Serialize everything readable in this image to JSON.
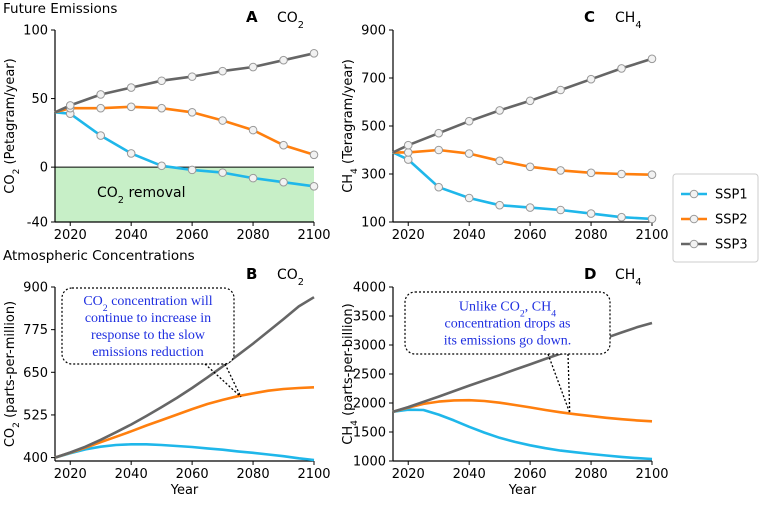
{
  "sections": {
    "top": "Future Emissions",
    "bottom": "Atmospheric Concentrations"
  },
  "colors": {
    "SSP1": "#1fb7ea",
    "SSP2": "#ff7f0e",
    "SSP3": "#666666",
    "removal": "#c7efc7"
  },
  "legend": [
    "SSP1",
    "SSP2",
    "SSP3"
  ],
  "chart_data": [
    {
      "id": "A",
      "type": "line",
      "panel_letter": "A",
      "gas": "CO",
      "gas_sub": "2",
      "title": "CO₂",
      "ylabel": "CO₂ (Petagram/year)",
      "ylabel_main": "CO",
      "ylabel_sub": "2",
      "ylabel_rest": " (Petagram/year)",
      "xlabel": "",
      "xlim": [
        2015,
        2100
      ],
      "ylim": [
        -40,
        100
      ],
      "xticks": [
        2020,
        2040,
        2060,
        2080,
        2100
      ],
      "yticks": [
        -40,
        0,
        50,
        100
      ],
      "zero_line": true,
      "removal_region": {
        "label": "CO₂ removal",
        "label_main": "CO",
        "label_sub": "2",
        "label_rest": " removal",
        "y_range": [
          -40,
          0
        ]
      },
      "markers": true,
      "series": [
        {
          "name": "SSP1",
          "x": [
            2015,
            2020,
            2030,
            2040,
            2050,
            2060,
            2070,
            2080,
            2090,
            2100
          ],
          "values": [
            40,
            39,
            23,
            10,
            1,
            -2,
            -4,
            -8,
            -11,
            -14
          ]
        },
        {
          "name": "SSP2",
          "x": [
            2015,
            2020,
            2030,
            2040,
            2050,
            2060,
            2070,
            2080,
            2090,
            2100
          ],
          "values": [
            40,
            43,
            43,
            44,
            43,
            40,
            34,
            27,
            16,
            9
          ]
        },
        {
          "name": "SSP3",
          "x": [
            2015,
            2020,
            2030,
            2040,
            2050,
            2060,
            2070,
            2080,
            2090,
            2100
          ],
          "values": [
            40,
            45,
            53,
            58,
            63,
            66,
            70,
            73,
            78,
            83
          ]
        }
      ]
    },
    {
      "id": "C",
      "type": "line",
      "panel_letter": "C",
      "gas": "CH",
      "gas_sub": "4",
      "title": "CH₄",
      "ylabel": "CH₄ (Teragram/year)",
      "ylabel_main": "CH",
      "ylabel_sub": "4",
      "ylabel_rest": " (Teragram/year)",
      "xlabel": "",
      "xlim": [
        2015,
        2100
      ],
      "ylim": [
        100,
        900
      ],
      "xticks": [
        2020,
        2040,
        2060,
        2080,
        2100
      ],
      "yticks": [
        100,
        300,
        500,
        700,
        900
      ],
      "markers": true,
      "series": [
        {
          "name": "SSP1",
          "x": [
            2015,
            2020,
            2030,
            2040,
            2050,
            2060,
            2070,
            2080,
            2090,
            2100
          ],
          "values": [
            390,
            360,
            245,
            200,
            170,
            160,
            150,
            135,
            120,
            113
          ]
        },
        {
          "name": "SSP2",
          "x": [
            2015,
            2020,
            2030,
            2040,
            2050,
            2060,
            2070,
            2080,
            2090,
            2100
          ],
          "values": [
            390,
            390,
            400,
            385,
            355,
            330,
            315,
            305,
            300,
            297
          ]
        },
        {
          "name": "SSP3",
          "x": [
            2015,
            2020,
            2030,
            2040,
            2050,
            2060,
            2070,
            2080,
            2090,
            2100
          ],
          "values": [
            390,
            420,
            470,
            520,
            565,
            605,
            650,
            695,
            740,
            780
          ]
        }
      ]
    },
    {
      "id": "B",
      "type": "line",
      "panel_letter": "B",
      "gas": "CO",
      "gas_sub": "2",
      "title": "CO₂",
      "ylabel": "CO₂ (parts-per-million)",
      "ylabel_main": "CO",
      "ylabel_sub": "2",
      "ylabel_rest": " (parts-per-million)",
      "xlabel": "Year",
      "xlim": [
        2015,
        2100
      ],
      "ylim": [
        390,
        900
      ],
      "xticks": [
        2020,
        2040,
        2060,
        2080,
        2100
      ],
      "yticks": [
        400,
        525,
        650,
        775,
        900
      ],
      "markers": false,
      "annotation": {
        "lines": [
          [
            {
              "t": "CO"
            },
            {
              "t": "2",
              "sub": true
            },
            {
              "t": " concentration will"
            }
          ],
          [
            {
              "t": "continue to increase in"
            }
          ],
          [
            {
              "t": "response to the  slow"
            }
          ],
          [
            {
              "t": "emissions reduction"
            }
          ]
        ],
        "target": [
          2076,
          578
        ]
      },
      "series": [
        {
          "name": "SSP1",
          "x": [
            2015,
            2020,
            2025,
            2030,
            2035,
            2040,
            2045,
            2050,
            2055,
            2060,
            2065,
            2070,
            2075,
            2080,
            2085,
            2090,
            2095,
            2100
          ],
          "values": [
            400,
            413,
            424,
            432,
            437,
            439,
            439,
            437,
            434,
            431,
            427,
            423,
            418,
            414,
            409,
            404,
            398,
            393
          ]
        },
        {
          "name": "SSP2",
          "x": [
            2015,
            2020,
            2025,
            2030,
            2035,
            2040,
            2045,
            2050,
            2055,
            2060,
            2065,
            2070,
            2075,
            2080,
            2085,
            2090,
            2095,
            2100
          ],
          "values": [
            400,
            414,
            429,
            445,
            461,
            477,
            494,
            510,
            526,
            542,
            557,
            569,
            580,
            588,
            596,
            601,
            604,
            606
          ]
        },
        {
          "name": "SSP3",
          "x": [
            2015,
            2020,
            2025,
            2030,
            2035,
            2040,
            2045,
            2050,
            2055,
            2060,
            2065,
            2070,
            2075,
            2080,
            2085,
            2090,
            2095,
            2100
          ],
          "values": [
            400,
            415,
            432,
            452,
            474,
            497,
            522,
            548,
            575,
            604,
            635,
            667,
            700,
            734,
            770,
            806,
            843,
            870
          ]
        }
      ]
    },
    {
      "id": "D",
      "type": "line",
      "panel_letter": "D",
      "gas": "CH",
      "gas_sub": "4",
      "title": "CH₄",
      "ylabel": "CH₄ (parts-per-billion)",
      "ylabel_main": "CH",
      "ylabel_sub": "4",
      "ylabel_rest": " (parts-per-billion)",
      "xlabel": "Year",
      "xlim": [
        2015,
        2100
      ],
      "ylim": [
        1000,
        4000
      ],
      "xticks": [
        2020,
        2040,
        2060,
        2080,
        2100
      ],
      "yticks": [
        1000,
        1500,
        2000,
        2500,
        3000,
        3500,
        4000
      ],
      "markers": false,
      "annotation": {
        "lines": [
          [
            {
              "t": "Unlike CO"
            },
            {
              "t": "2",
              "sub": true
            },
            {
              "t": ", CH"
            },
            {
              "t": "4",
              "sub": true
            }
          ],
          [
            {
              "t": "concentration drops as"
            }
          ],
          [
            {
              "t": "its emissions go down."
            }
          ]
        ],
        "target": [
          2073,
          1830
        ]
      },
      "series": [
        {
          "name": "SSP1",
          "x": [
            2015,
            2020,
            2025,
            2030,
            2035,
            2040,
            2045,
            2050,
            2055,
            2060,
            2065,
            2070,
            2075,
            2080,
            2085,
            2090,
            2095,
            2100
          ],
          "values": [
            1850,
            1885,
            1880,
            1800,
            1700,
            1590,
            1490,
            1400,
            1330,
            1270,
            1220,
            1180,
            1150,
            1120,
            1095,
            1070,
            1050,
            1035
          ]
        },
        {
          "name": "SSP2",
          "x": [
            2015,
            2020,
            2025,
            2030,
            2035,
            2040,
            2045,
            2050,
            2055,
            2060,
            2065,
            2070,
            2075,
            2080,
            2085,
            2090,
            2095,
            2100
          ],
          "values": [
            1850,
            1920,
            1985,
            2025,
            2045,
            2048,
            2035,
            2005,
            1965,
            1925,
            1880,
            1840,
            1805,
            1775,
            1745,
            1720,
            1700,
            1685
          ]
        },
        {
          "name": "SSP3",
          "x": [
            2015,
            2020,
            2025,
            2030,
            2035,
            2040,
            2045,
            2050,
            2055,
            2060,
            2065,
            2070,
            2075,
            2080,
            2085,
            2090,
            2095,
            2100
          ],
          "values": [
            1850,
            1930,
            2020,
            2110,
            2205,
            2300,
            2390,
            2480,
            2575,
            2665,
            2760,
            2850,
            2945,
            3035,
            3125,
            3215,
            3305,
            3380
          ]
        }
      ]
    }
  ]
}
